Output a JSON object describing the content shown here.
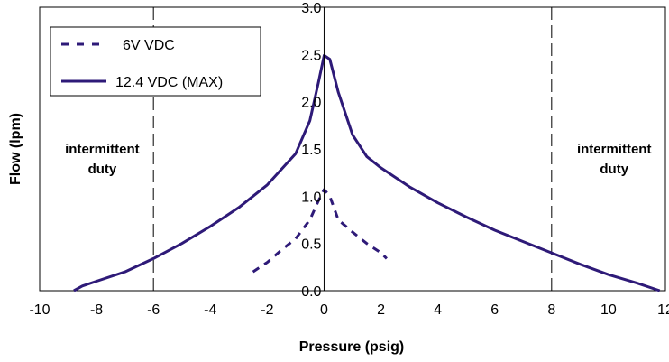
{
  "chart_data": {
    "type": "line",
    "xlabel": "Pressure (psig)",
    "ylabel": "Flow (lpm)",
    "xlim": [
      -10,
      12
    ],
    "ylim": [
      0,
      3.0
    ],
    "x_ticks": [
      "-10",
      "-8",
      "-6",
      "-4",
      "-2",
      "0",
      "2",
      "4",
      "6",
      "8",
      "10",
      "12"
    ],
    "y_ticks": [
      "0.0",
      "0.5",
      "1.0",
      "1.5",
      "2.0",
      "2.5",
      "3.0"
    ],
    "grid": false,
    "legend_placement": "top-left",
    "series": [
      {
        "name": "6V VDC",
        "style": "dashed",
        "color": "#2e1a78",
        "points": [
          [
            -2.5,
            0.2
          ],
          [
            -2.0,
            0.3
          ],
          [
            -1.5,
            0.43
          ],
          [
            -1.0,
            0.55
          ],
          [
            -0.5,
            0.75
          ],
          [
            -0.2,
            0.95
          ],
          [
            0.0,
            1.07
          ],
          [
            0.2,
            1.0
          ],
          [
            0.5,
            0.75
          ],
          [
            1.0,
            0.62
          ],
          [
            1.5,
            0.5
          ],
          [
            2.0,
            0.4
          ],
          [
            2.2,
            0.34
          ]
        ]
      },
      {
        "name": "12.4 VDC (MAX)",
        "style": "solid",
        "color": "#2e1a78",
        "points": [
          [
            -8.8,
            0.0
          ],
          [
            -8.5,
            0.05
          ],
          [
            -8.0,
            0.1
          ],
          [
            -7.0,
            0.2
          ],
          [
            -6.0,
            0.34
          ],
          [
            -5.0,
            0.5
          ],
          [
            -4.0,
            0.68
          ],
          [
            -3.0,
            0.88
          ],
          [
            -2.0,
            1.12
          ],
          [
            -1.0,
            1.45
          ],
          [
            -0.5,
            1.8
          ],
          [
            -0.2,
            2.2
          ],
          [
            0.0,
            2.49
          ],
          [
            0.2,
            2.45
          ],
          [
            0.5,
            2.1
          ],
          [
            1.0,
            1.65
          ],
          [
            1.5,
            1.42
          ],
          [
            2.0,
            1.3
          ],
          [
            3.0,
            1.1
          ],
          [
            4.0,
            0.93
          ],
          [
            5.0,
            0.78
          ],
          [
            6.0,
            0.64
          ],
          [
            7.0,
            0.52
          ],
          [
            8.0,
            0.4
          ],
          [
            9.0,
            0.28
          ],
          [
            10.0,
            0.17
          ],
          [
            11.0,
            0.08
          ],
          [
            11.8,
            0.0
          ]
        ]
      }
    ],
    "vlines": [
      -6,
      8
    ],
    "annotations": [
      {
        "text_lines": [
          "intermittent",
          "duty"
        ],
        "x": -7.8,
        "y": 1.45
      },
      {
        "text_lines": [
          "intermittent",
          "duty"
        ],
        "x": 10.2,
        "y": 1.45
      }
    ]
  }
}
